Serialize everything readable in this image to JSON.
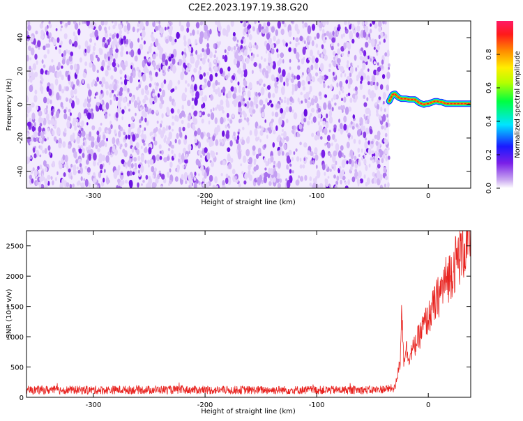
{
  "title": "C2E2.2023.197.19.38.G20",
  "colors": {
    "spectrogram_noise": "#8a2be2",
    "snr_line": "#e8231f",
    "axis": "#000000"
  },
  "chart_data": [
    {
      "type": "heatmap",
      "xlabel": "Height of straight line (km)",
      "ylabel": "Frequency (Hz)",
      "xlim": [
        -360,
        38
      ],
      "ylim": [
        -50,
        50
      ],
      "xticks": [
        -300,
        -200,
        -100,
        0
      ],
      "yticks": [
        -40,
        -20,
        0,
        20,
        40
      ],
      "noise_region_x": [
        -360,
        -35
      ],
      "signal_track": {
        "x": [
          -35,
          -32,
          -30,
          -28,
          -26,
          -24,
          -22,
          -20,
          -17,
          -14,
          -12,
          -10,
          -8,
          -6,
          -4,
          -2,
          0,
          2,
          4,
          6,
          8,
          10,
          12,
          14,
          16,
          18,
          20,
          22,
          24,
          26,
          28,
          30,
          32,
          34,
          36,
          38
        ],
        "y": [
          2,
          6,
          6.5,
          5,
          4,
          3.5,
          3.5,
          3.5,
          3,
          3,
          3,
          2,
          1,
          0.5,
          0,
          0.5,
          0.5,
          1,
          1.5,
          2,
          2,
          1.5,
          1.5,
          1,
          0.5,
          0.5,
          0.5,
          0.5,
          0.5,
          0.5,
          0.5,
          0.5,
          0.5,
          0.5,
          0.5,
          0.5
        ]
      },
      "colorbar": {
        "label": "Normalized spectral amplitude",
        "ticks": [
          0.0,
          0.2,
          0.4,
          0.6,
          0.8
        ],
        "tick_labels": [
          "0.0",
          "0.2",
          "0.4",
          "0.6",
          "0.8"
        ],
        "range": [
          0,
          1
        ],
        "colormap": "rainbow: white→purple→blue→cyan→green→yellow→orange→red→magenta"
      }
    },
    {
      "type": "line",
      "xlabel": "Height of straight line (km)",
      "ylabel": "SNR (10 * v/v)",
      "xlim": [
        -360,
        38
      ],
      "ylim": [
        0,
        2750
      ],
      "xticks": [
        -300,
        -200,
        -100,
        0
      ],
      "yticks": [
        0,
        500,
        1000,
        1500,
        2000,
        2500
      ],
      "series": [
        {
          "x": [
            -360,
            -300,
            -240,
            -200,
            -150,
            -100,
            -50,
            -30,
            -25,
            -24,
            -22,
            -20,
            -18,
            -15,
            -12,
            -10,
            -8,
            -5,
            -2,
            0,
            5,
            10,
            15,
            20,
            25,
            30,
            35,
            38
          ],
          "y": [
            120,
            120,
            125,
            120,
            120,
            120,
            120,
            150,
            600,
            1650,
            600,
            850,
            650,
            750,
            850,
            950,
            1000,
            1150,
            1250,
            1300,
            1500,
            1700,
            1900,
            2050,
            2250,
            2400,
            2550,
            2650
          ]
        }
      ]
    }
  ]
}
